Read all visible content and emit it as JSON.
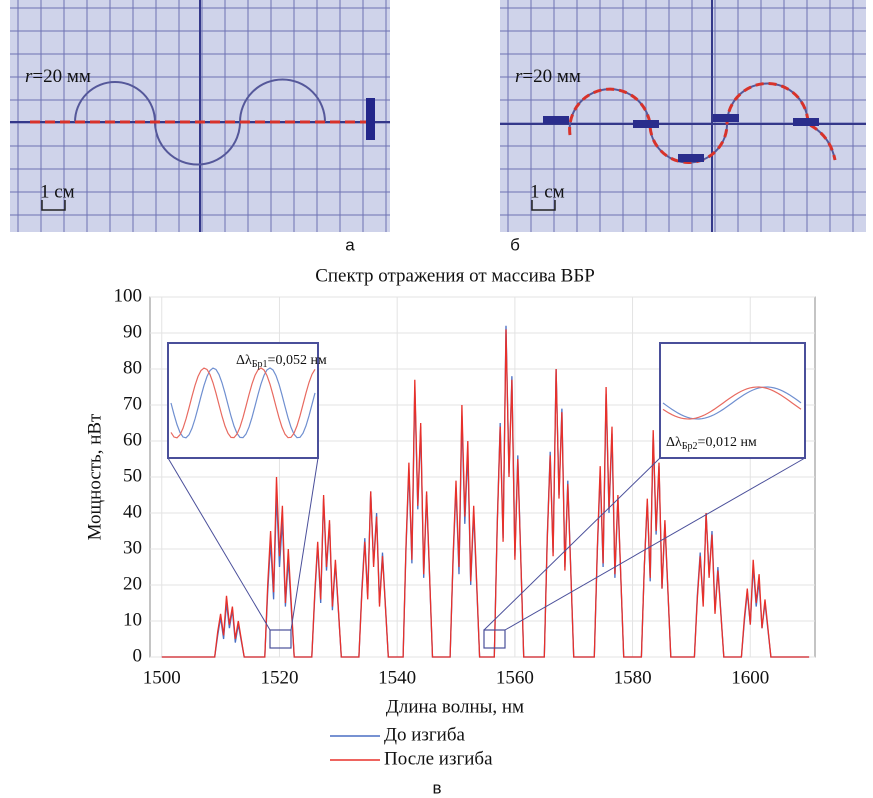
{
  "panel_a": {
    "label": "а",
    "radius_symbol": "r",
    "radius_text": "=20 мм",
    "scale_text": "1 см"
  },
  "panel_b": {
    "label": "б",
    "radius_symbol": "r",
    "radius_text": "=20 мм",
    "scale_text": "1 см"
  },
  "chart_data": {
    "type": "line",
    "title": "Спектр отражения от массива ВБР",
    "x_label": "Длина волны, нм",
    "y_label": "Мощность, нВт",
    "xlim": [
      1498,
      1611
    ],
    "ylim": [
      0,
      100
    ],
    "xticks": [
      1500,
      1520,
      1540,
      1560,
      1580,
      1600
    ],
    "yticks": [
      0,
      10,
      20,
      30,
      40,
      50,
      60,
      70,
      80,
      90,
      100
    ],
    "grid": true,
    "legend": "bottom",
    "x": [
      1500,
      1509,
      1509.5,
      1510,
      1510.5,
      1511,
      1511.5,
      1512,
      1512.5,
      1513,
      1514,
      1517.5,
      1518,
      1518.5,
      1519,
      1519.5,
      1520,
      1520.5,
      1521,
      1521.5,
      1522.5,
      1525.5,
      1526,
      1526.5,
      1527,
      1527.5,
      1528,
      1528.5,
      1529,
      1529.5,
      1530.5,
      1533.5,
      1534,
      1534.5,
      1535,
      1535.5,
      1536,
      1536.5,
      1537,
      1537.5,
      1538.5,
      1541,
      1541.5,
      1542,
      1542.5,
      1543,
      1543.5,
      1544,
      1544.5,
      1545,
      1546,
      1549,
      1549.5,
      1550,
      1550.5,
      1551,
      1551.5,
      1552,
      1552.5,
      1553,
      1554,
      1556.5,
      1557,
      1557.5,
      1558,
      1558.5,
      1559,
      1559.5,
      1560,
      1560.5,
      1561.5,
      1565,
      1565.5,
      1566,
      1566.5,
      1567,
      1567.5,
      1568,
      1568.5,
      1569,
      1570,
      1573.5,
      1574,
      1574.5,
      1575,
      1575.5,
      1576,
      1576.5,
      1577,
      1577.5,
      1578.5,
      1581.5,
      1582,
      1582.5,
      1583,
      1583.5,
      1584,
      1584.5,
      1585,
      1585.5,
      1586.5,
      1590.5,
      1591,
      1591.5,
      1592,
      1592.5,
      1593,
      1593.5,
      1594,
      1594.5,
      1595.5,
      1598.5,
      1599,
      1599.5,
      1600,
      1600.5,
      1601,
      1601.5,
      1602,
      1602.5,
      1603.5,
      1610
    ],
    "series": [
      {
        "name": "До изгиба",
        "color": "#4a6fc4",
        "values": [
          0,
          0,
          6,
          11,
          5,
          15,
          8,
          13,
          4,
          9,
          0,
          0,
          18,
          32,
          16,
          45,
          25,
          38,
          14,
          27,
          0,
          0,
          17,
          31,
          15,
          44,
          24,
          37,
          13,
          26,
          0,
          0,
          19,
          33,
          17,
          46,
          26,
          40,
          15,
          29,
          0,
          0,
          30,
          52,
          26,
          75,
          41,
          64,
          22,
          45,
          0,
          0,
          27,
          47,
          23,
          67,
          37,
          57,
          20,
          40,
          0,
          0,
          37,
          65,
          33,
          92,
          51,
          78,
          28,
          56,
          0,
          0,
          33,
          57,
          29,
          80,
          45,
          69,
          25,
          49,
          0,
          0,
          29,
          51,
          25,
          73,
          40,
          62,
          22,
          44,
          0,
          0,
          25,
          43,
          21,
          62,
          34,
          53,
          19,
          37,
          0,
          0,
          17,
          29,
          15,
          40,
          23,
          35,
          13,
          25,
          0,
          0,
          10,
          18,
          9,
          25,
          14,
          21,
          8,
          15,
          0,
          0
        ]
      },
      {
        "name": "После изгиба",
        "color": "#e8302a",
        "values": [
          0,
          0,
          7,
          12,
          6,
          17,
          9,
          14,
          5,
          10,
          0,
          0,
          20,
          35,
          18,
          50,
          28,
          42,
          15,
          30,
          0,
          0,
          18,
          32,
          16,
          45,
          25,
          38,
          14,
          27,
          0,
          0,
          18,
          32,
          16,
          46,
          25,
          39,
          14,
          28,
          0,
          0,
          31,
          54,
          27,
          77,
          42,
          65,
          23,
          46,
          0,
          0,
          28,
          49,
          25,
          70,
          39,
          60,
          21,
          42,
          0,
          0,
          36,
          64,
          32,
          91,
          50,
          77,
          27,
          55,
          0,
          0,
          32,
          56,
          28,
          80,
          44,
          68,
          24,
          48,
          0,
          0,
          30,
          53,
          26,
          75,
          41,
          64,
          23,
          45,
          0,
          0,
          25,
          44,
          22,
          63,
          35,
          54,
          19,
          38,
          0,
          0,
          16,
          28,
          14,
          40,
          22,
          34,
          12,
          24,
          0,
          0,
          11,
          19,
          9,
          27,
          15,
          23,
          8,
          16,
          0,
          0
        ]
      }
    ],
    "annotations": [
      {
        "symbol": "Δλ",
        "subscript": "Бр1",
        "text": "=0,052 нм"
      },
      {
        "symbol": "Δλ",
        "subscript": "Бр2",
        "text": "=0,012 нм"
      }
    ],
    "caption": "в"
  }
}
